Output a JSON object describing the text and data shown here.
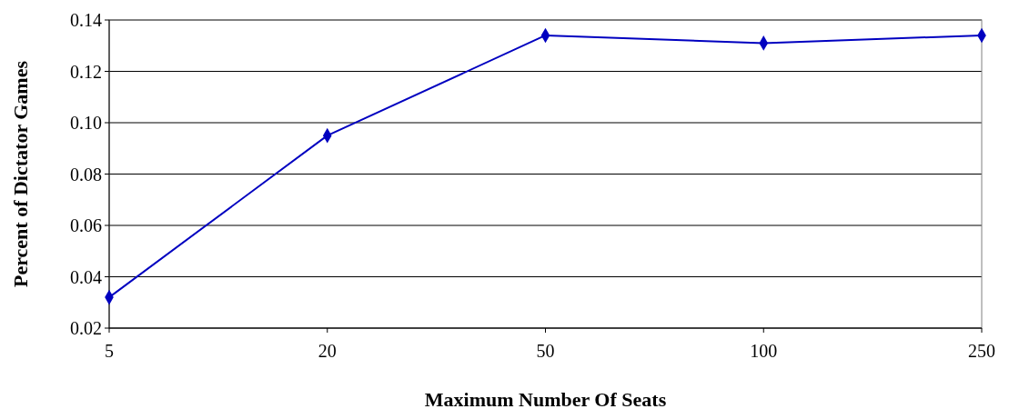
{
  "chart_data": {
    "type": "line",
    "xlabel": "Maximum Number Of Seats",
    "ylabel": "Percent of Dictator Games",
    "categories": [
      "5",
      "20",
      "50",
      "100",
      "250"
    ],
    "series": [
      {
        "color": "#0000c0",
        "values": [
          0.032,
          0.095,
          0.134,
          0.131,
          0.134
        ]
      }
    ],
    "ylim": [
      0.02,
      0.14
    ],
    "yticks": [
      {
        "value": 0.02,
        "label": "0.02"
      },
      {
        "value": 0.04,
        "label": "0.04"
      },
      {
        "value": 0.06,
        "label": "0.06"
      },
      {
        "value": 0.08,
        "label": "0.08"
      },
      {
        "value": 0.1,
        "label": "0.10"
      },
      {
        "value": 0.12,
        "label": "0.12"
      },
      {
        "value": 0.14,
        "label": "0.14"
      }
    ],
    "grid": "y",
    "marker": "diamond",
    "line_style": "solid"
  }
}
